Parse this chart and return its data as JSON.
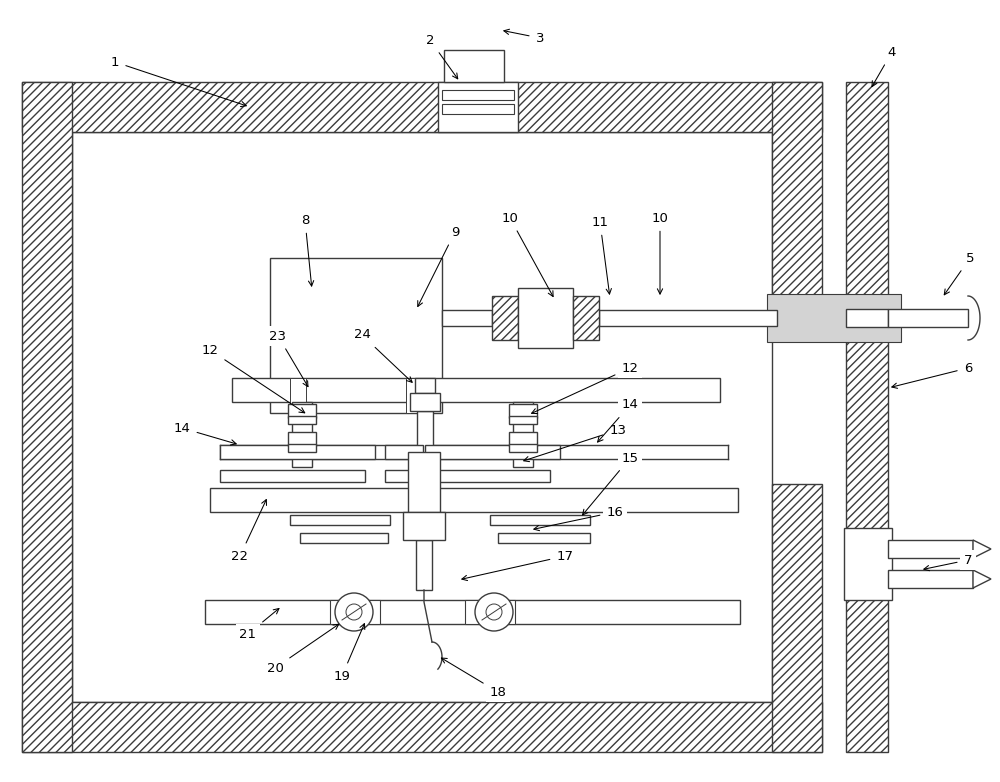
{
  "bg": "#ffffff",
  "lc": "#3c3c3c",
  "lw": 1.0,
  "fig_w": 10.0,
  "fig_h": 7.82,
  "dpi": 100
}
